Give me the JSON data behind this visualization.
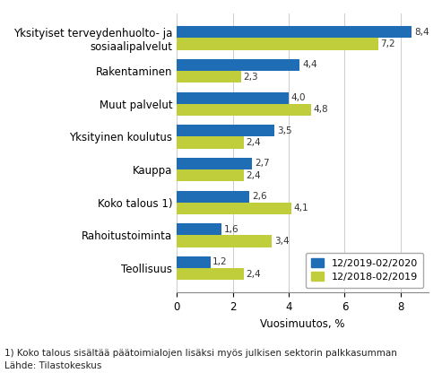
{
  "categories": [
    "Yksityiset terveydenhuolto- ja\nsosiaalipalvelut",
    "Rakentaminen",
    "Muut palvelut",
    "Yksityinen koulutus",
    "Kauppa",
    "Koko talous 1)",
    "Rahoitustoiminta",
    "Teollisuus"
  ],
  "series1_label": "12/2019-02/2020",
  "series2_label": "12/2018-02/2019",
  "series1_values": [
    8.4,
    4.4,
    4.0,
    3.5,
    2.7,
    2.6,
    1.6,
    1.2
  ],
  "series2_values": [
    7.2,
    2.3,
    4.8,
    2.4,
    2.4,
    4.1,
    3.4,
    2.4
  ],
  "series1_color": "#1F6EB5",
  "series2_color": "#BFCE3A",
  "xlabel": "Vuosimuutos, %",
  "xlim": [
    0,
    9
  ],
  "xticks": [
    0,
    2,
    4,
    6,
    8
  ],
  "footnote1": "1) Koko talous sisältää päätoimialojen lisäksi myös julkisen sektorin palkkasumman",
  "footnote2": "Lähde: Tilastokeskus",
  "background_color": "#ffffff",
  "bar_height": 0.36,
  "value_fontsize": 7.5,
  "label_fontsize": 8.5,
  "tick_fontsize": 8.5,
  "legend_fontsize": 8,
  "footnote_fontsize": 7.5
}
